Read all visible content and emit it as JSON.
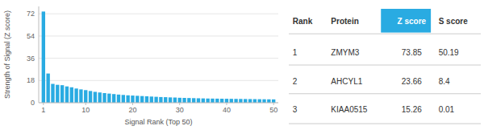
{
  "chart_data": {
    "type": "bar",
    "x": [
      1,
      2,
      3,
      4,
      5,
      6,
      7,
      8,
      9,
      10,
      11,
      12,
      13,
      14,
      15,
      16,
      17,
      18,
      19,
      20,
      21,
      22,
      23,
      24,
      25,
      26,
      27,
      28,
      29,
      30,
      31,
      32,
      33,
      34,
      35,
      36,
      37,
      38,
      39,
      40,
      41,
      42,
      43,
      44,
      45,
      46,
      47,
      48,
      49,
      50
    ],
    "values": [
      73.85,
      23.66,
      15.26,
      14.5,
      14.2,
      13.2,
      12.5,
      11.5,
      10.8,
      10.2,
      9.5,
      8.8,
      8.3,
      7.8,
      7.4,
      7.0,
      6.6,
      6.3,
      6.0,
      5.8,
      5.6,
      5.4,
      5.2,
      5.0,
      4.8,
      4.6,
      4.5,
      4.3,
      4.2,
      4.0,
      3.9,
      3.8,
      3.7,
      3.6,
      3.5,
      3.4,
      3.35,
      3.3,
      3.25,
      3.2,
      3.15,
      3.1,
      3.05,
      3.0,
      2.95,
      2.9,
      2.85,
      2.8,
      2.75,
      2.7
    ],
    "color": "#29ABE2",
    "xlabel": "Signal Rank (Top 50)",
    "ylabel": "Strength of Signal (Z score)",
    "xlim": [
      0.0,
      51
    ],
    "xticks": [
      1,
      10,
      20,
      30,
      40,
      50
    ],
    "ylim": [
      0,
      78
    ],
    "yticks": [
      0,
      18,
      36,
      54,
      72
    ],
    "grid": true,
    "table": {
      "header": [
        "Rank",
        "Protein",
        "Z score",
        "S score"
      ],
      "rows": [
        [
          "1",
          "ZMYM3",
          "73.85",
          "50.19"
        ],
        [
          "2",
          "AHCYL1",
          "23.66",
          "8.4"
        ],
        [
          "3",
          "KIAA0515",
          "15.26",
          "0.01"
        ]
      ]
    }
  }
}
